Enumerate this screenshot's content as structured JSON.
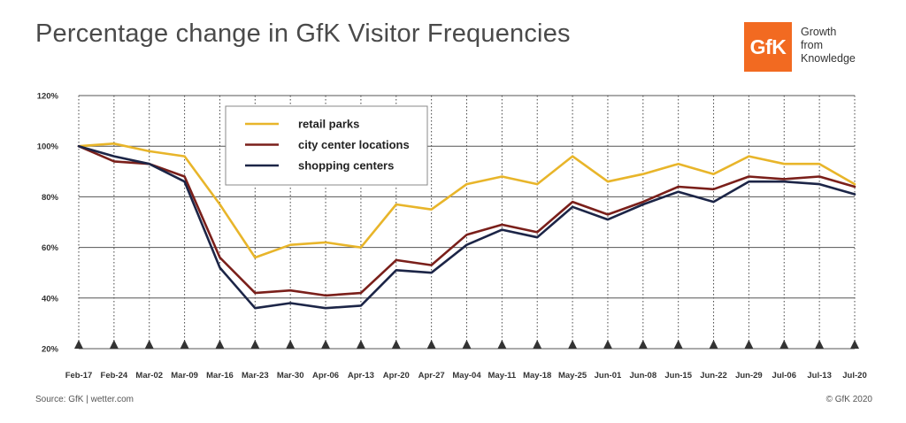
{
  "header": {
    "title": "Percentage change in GfK Visitor Frequencies"
  },
  "brand": {
    "logo_text": "GfK",
    "tagline": [
      "Growth",
      "from",
      "Knowledge"
    ],
    "logo_color": "#f26a21"
  },
  "footer": {
    "source": "Source: GfK | wetter.com",
    "copyright": "© GfK 2020"
  },
  "chart_data": {
    "type": "line",
    "title": "Percentage change in GfK Visitor Frequencies",
    "xlabel": "",
    "ylabel": "",
    "categories": [
      "Feb-17",
      "Feb-24",
      "Mar-02",
      "Mar-09",
      "Mar-16",
      "Mar-23",
      "Mar-30",
      "Apr-06",
      "Apr-13",
      "Apr-20",
      "Apr-27",
      "May-04",
      "May-11",
      "May-18",
      "May-25",
      "Jun-01",
      "Jun-08",
      "Jun-15",
      "Jun-22",
      "Jun-29",
      "Jul-06",
      "Jul-13",
      "Jul-20"
    ],
    "ylim": [
      20,
      120
    ],
    "yticks": [
      20,
      40,
      60,
      80,
      100,
      120
    ],
    "ytick_labels": [
      "20%",
      "40%",
      "60%",
      "80%",
      "100%",
      "120%"
    ],
    "grid": "dotted vertical, solid horizontal",
    "legend_position": "top-left",
    "series": [
      {
        "name": "retail parks",
        "color": "#e8b52a",
        "values": [
          100,
          101,
          98,
          96,
          77,
          56,
          61,
          62,
          60,
          77,
          75,
          85,
          88,
          85,
          96,
          86,
          89,
          93,
          89,
          96,
          93,
          93,
          85
        ]
      },
      {
        "name": "city center locations",
        "color": "#7a1f1a",
        "values": [
          100,
          94,
          93,
          88,
          56,
          42,
          43,
          41,
          42,
          55,
          53,
          65,
          69,
          66,
          78,
          73,
          78,
          84,
          83,
          88,
          87,
          88,
          84
        ]
      },
      {
        "name": "shopping centers",
        "color": "#1c2547",
        "values": [
          100,
          96,
          93,
          86,
          52,
          36,
          38,
          36,
          37,
          51,
          50,
          61,
          67,
          64,
          76,
          71,
          77,
          82,
          78,
          86,
          86,
          85,
          81
        ]
      }
    ]
  }
}
